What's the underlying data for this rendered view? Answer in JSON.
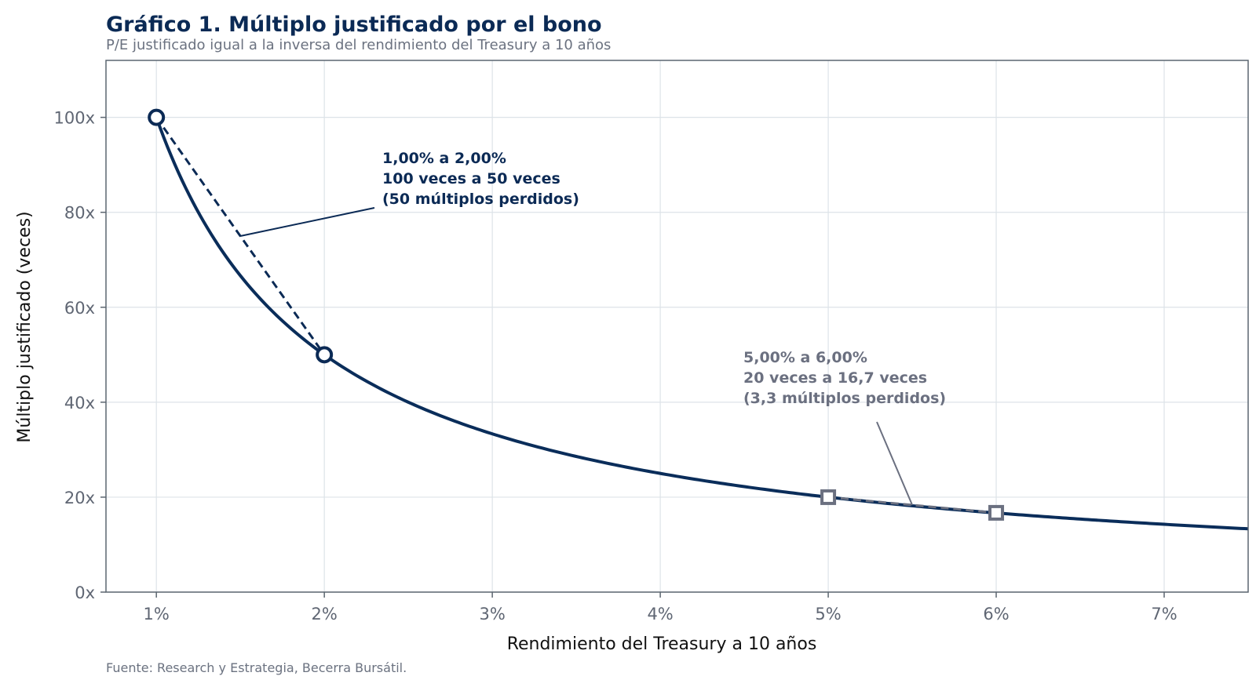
{
  "colors": {
    "curve": "#0a2d5a",
    "highlight_primary": "#0b2a55",
    "highlight_secondary": "#6b7080",
    "grid": "#dde3e8",
    "frame": "#5c6670"
  },
  "chart_data": {
    "type": "line",
    "title": "Gráfico 1. Múltiplo justificado por el bono",
    "subtitle": "P/E justificado igual a la inversa del rendimiento del Treasury a 10 años",
    "xlabel": "Rendimiento del Treasury a 10 años",
    "ylabel": "Múltiplo justificado (veces)",
    "source": "Fuente: Research y Estrategia, Becerra Bursátil.",
    "xlim": [
      0.7,
      7.5
    ],
    "ylim": [
      0,
      112
    ],
    "x_ticks": [
      1,
      2,
      3,
      4,
      5,
      6,
      7
    ],
    "x_tick_labels": [
      "1%",
      "2%",
      "3%",
      "4%",
      "5%",
      "6%",
      "7%"
    ],
    "y_ticks": [
      0,
      20,
      40,
      60,
      80,
      100
    ],
    "y_tick_labels": [
      "0x",
      "20x",
      "40x",
      "60x",
      "80x",
      "100x"
    ],
    "grid": true,
    "legend": "none",
    "series": [
      {
        "function": "y = 100 / x",
        "x_start": 1.0,
        "x_end": 7.5
      }
    ],
    "highlights": [
      {
        "style": "primary",
        "marker": "circle",
        "points": [
          {
            "x": 1,
            "y": 100
          },
          {
            "x": 2,
            "y": 50
          }
        ],
        "lines": [
          "1,00% a 2,00%",
          "100 veces a 50 veces",
          "(50 múltiplos perdidos)"
        ]
      },
      {
        "style": "secondary",
        "marker": "square",
        "points": [
          {
            "x": 5,
            "y": 20
          },
          {
            "x": 6,
            "y": 16.7
          }
        ],
        "lines": [
          "5,00% a 6,00%",
          "20 veces a 16,7 veces",
          "(3,3 múltiplos perdidos)"
        ]
      }
    ]
  }
}
